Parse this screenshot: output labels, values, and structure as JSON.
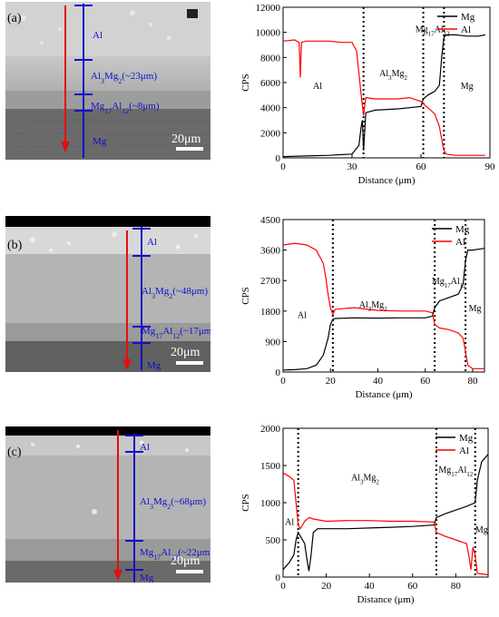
{
  "figure": {
    "panels": [
      {
        "id": "a",
        "sem": {
          "panel_label": "(a)",
          "scale_bar": "20μm",
          "labels": [
            "Al",
            "Al3Mg2(~23μm)",
            "Mg17Al12(~8μm)",
            "Mg"
          ],
          "layer_labels": [
            {
              "base": "Al",
              "sub": "",
              "rest": ""
            },
            {
              "base": "Al",
              "sub": "3",
              "base2": "Mg",
              "sub2": "2",
              "rest": "(~23μm)"
            },
            {
              "base": "Mg",
              "sub": "17",
              "base2": "Al",
              "sub2": "12",
              "rest": "(~8μm)"
            },
            {
              "base": "Mg",
              "sub": "",
              "rest": ""
            }
          ]
        }
      },
      {
        "id": "b",
        "sem": {
          "panel_label": "(b)",
          "scale_bar": "20μm",
          "labels": [
            "Al",
            "Al3Mg2(~48μm)",
            "Mg17Al12(~17μm)",
            "Mg"
          ],
          "layer_labels": [
            {
              "base": "Al",
              "sub": "",
              "rest": ""
            },
            {
              "base": "Al",
              "sub": "3",
              "base2": "Mg",
              "sub2": "2",
              "rest": "(~48μm)"
            },
            {
              "base": "Mg",
              "sub": "17",
              "base2": "Al",
              "sub2": "12",
              "rest": "(~17μm)"
            },
            {
              "base": "Mg",
              "sub": "",
              "rest": ""
            }
          ]
        }
      },
      {
        "id": "c",
        "sem": {
          "panel_label": "(c)",
          "scale_bar": "20μm",
          "labels": [
            "Al",
            "Al3Mg2(~68μm)",
            "Mg17Al12(~22μm)",
            "Mg"
          ],
          "layer_labels": [
            {
              "base": "Al",
              "sub": "",
              "rest": ""
            },
            {
              "base": "Al",
              "sub": "3",
              "base2": "Mg",
              "sub2": "2",
              "rest": "(~68μm)"
            },
            {
              "base": "Mg",
              "sub": "17",
              "base2": "Al",
              "sub2": "12",
              "rest": "(~22μm)"
            },
            {
              "base": "Mg",
              "sub": "",
              "rest": ""
            }
          ]
        }
      }
    ],
    "colors": {
      "mg_line": "#000000",
      "al_line": "#ff0000",
      "sem_marker": "#1010c8",
      "sem_arrow": "#e01010"
    }
  },
  "chart_data": [
    {
      "type": "line",
      "xlabel": "Distance (μm)",
      "ylabel": "CPS",
      "xlim": [
        0,
        90
      ],
      "ylim": [
        0,
        12000
      ],
      "xticks": [
        0,
        30,
        60,
        90
      ],
      "yticks": [
        0,
        2000,
        4000,
        6000,
        8000,
        10000,
        12000
      ],
      "legend": [
        "Mg",
        "Al"
      ],
      "legend_position": "top-right",
      "boundaries": [
        35,
        61,
        70
      ],
      "region_labels": [
        {
          "base": "Al",
          "sub": "",
          "base2": "",
          "sub2": "",
          "x": 15,
          "y": 5500
        },
        {
          "base": "Al",
          "sub": "3",
          "base2": "Mg",
          "sub2": "2",
          "x": 48,
          "y": 6500
        },
        {
          "base": "Mg",
          "sub": "17",
          "base2": "Al",
          "sub2": "12",
          "x": 65,
          "y": 10000
        },
        {
          "base": "Mg",
          "sub": "",
          "base2": "",
          "sub2": "",
          "x": 80,
          "y": 5500
        }
      ],
      "series": [
        {
          "name": "Mg",
          "x": [
            0,
            10,
            20,
            30,
            33,
            34,
            34.5,
            35,
            36,
            40,
            50,
            55,
            60,
            61,
            63,
            66,
            68,
            69,
            70,
            71,
            75,
            80,
            85,
            88
          ],
          "y": [
            100,
            150,
            200,
            300,
            1000,
            2500,
            3000,
            600,
            3600,
            3800,
            3900,
            4000,
            4100,
            4700,
            5000,
            5300,
            5800,
            8000,
            9600,
            9800,
            9800,
            9700,
            9700,
            9800
          ]
        },
        {
          "name": "Al",
          "x": [
            0,
            5,
            7,
            7.5,
            8,
            10,
            20,
            25,
            30,
            32,
            34,
            35,
            36,
            40,
            50,
            55,
            60,
            61,
            63,
            66,
            68,
            69,
            70,
            71,
            75,
            80,
            85,
            88
          ],
          "y": [
            9300,
            9400,
            9200,
            6400,
            9200,
            9300,
            9300,
            9200,
            9200,
            8500,
            5000,
            3400,
            4800,
            4700,
            4700,
            4800,
            4500,
            4300,
            4000,
            3500,
            2500,
            1500,
            600,
            300,
            200,
            200,
            200,
            200
          ]
        }
      ]
    },
    {
      "type": "line",
      "xlabel": "Distance (μm)",
      "ylabel": "CPS",
      "xlim": [
        0,
        85
      ],
      "ylim": [
        0,
        4500
      ],
      "xticks": [
        0,
        20,
        40,
        60,
        80
      ],
      "yticks": [
        0,
        900,
        1800,
        2700,
        3600,
        4500
      ],
      "legend": [
        "Mg",
        "Al"
      ],
      "legend_position": "top-right",
      "boundaries": [
        21,
        64,
        77
      ],
      "region_labels": [
        {
          "base": "Al",
          "sub": "",
          "base2": "",
          "sub2": "",
          "x": 8,
          "y": 1600
        },
        {
          "base": "Al",
          "sub": "3",
          "base2": "Mg",
          "sub2": "2",
          "x": 38,
          "y": 1900
        },
        {
          "base": "Mg",
          "sub": "17",
          "base2": "Al",
          "sub2": "12",
          "x": 70,
          "y": 2600
        },
        {
          "base": "Mg",
          "sub": "",
          "base2": "",
          "sub2": "",
          "x": 81,
          "y": 1800
        }
      ],
      "series": [
        {
          "name": "Mg",
          "x": [
            0,
            5,
            10,
            14,
            17,
            19,
            20,
            21,
            22,
            30,
            40,
            50,
            60,
            63,
            64,
            66,
            70,
            74,
            76,
            77,
            78,
            80,
            85
          ],
          "y": [
            60,
            70,
            100,
            200,
            500,
            1000,
            1400,
            1550,
            1580,
            1600,
            1590,
            1600,
            1600,
            1650,
            1900,
            2100,
            2200,
            2300,
            2600,
            3300,
            3600,
            3600,
            3650
          ]
        },
        {
          "name": "Al",
          "x": [
            0,
            5,
            10,
            14,
            17,
            18,
            19,
            20,
            21,
            22,
            30,
            40,
            50,
            60,
            63,
            64,
            66,
            70,
            74,
            76,
            77,
            78,
            80,
            85
          ],
          "y": [
            3750,
            3800,
            3750,
            3600,
            3200,
            2800,
            2300,
            1900,
            1700,
            1850,
            1900,
            1820,
            1800,
            1800,
            1750,
            1400,
            1300,
            1250,
            1150,
            1000,
            600,
            200,
            100,
            100
          ]
        }
      ]
    },
    {
      "type": "line",
      "xlabel": "Distance (μm)",
      "ylabel": "CPS",
      "xlim": [
        0,
        95
      ],
      "ylim": [
        0,
        2000
      ],
      "xticks": [
        0,
        20,
        40,
        60,
        80
      ],
      "yticks": [
        0,
        500,
        1000,
        1500,
        2000
      ],
      "legend": [
        "Mg",
        "Al"
      ],
      "legend_position": "top-right",
      "boundaries": [
        7,
        71,
        89
      ],
      "region_labels": [
        {
          "base": "Al",
          "sub": "",
          "base2": "",
          "sub2": "",
          "x": 3,
          "y": 700
        },
        {
          "base": "Al",
          "sub": "3",
          "base2": "Mg",
          "sub2": "2",
          "x": 38,
          "y": 1300
        },
        {
          "base": "Mg",
          "sub": "17",
          "base2": "Al",
          "sub2": "12",
          "x": 80,
          "y": 1400
        },
        {
          "base": "Mg",
          "sub": "",
          "base2": "",
          "sub2": "",
          "x": 92,
          "y": 600
        }
      ],
      "series": [
        {
          "name": "Mg",
          "x": [
            0,
            3,
            5,
            6,
            7,
            8,
            10,
            11,
            12,
            13,
            14,
            16,
            20,
            30,
            40,
            50,
            60,
            70,
            71,
            75,
            80,
            85,
            89,
            90,
            92,
            95
          ],
          "y": [
            100,
            200,
            300,
            500,
            600,
            550,
            450,
            250,
            80,
            300,
            600,
            650,
            650,
            650,
            660,
            670,
            680,
            700,
            800,
            850,
            900,
            950,
            1000,
            1300,
            1550,
            1650
          ]
        },
        {
          "name": "Al",
          "x": [
            0,
            3,
            5,
            6,
            7,
            8,
            10,
            12,
            14,
            20,
            30,
            40,
            50,
            60,
            70,
            71,
            75,
            80,
            85,
            86,
            87,
            88,
            89,
            90,
            95
          ],
          "y": [
            1400,
            1350,
            1300,
            1000,
            700,
            650,
            750,
            800,
            780,
            750,
            760,
            760,
            750,
            750,
            740,
            600,
            550,
            500,
            450,
            300,
            100,
            400,
            300,
            50,
            30
          ]
        }
      ]
    }
  ]
}
